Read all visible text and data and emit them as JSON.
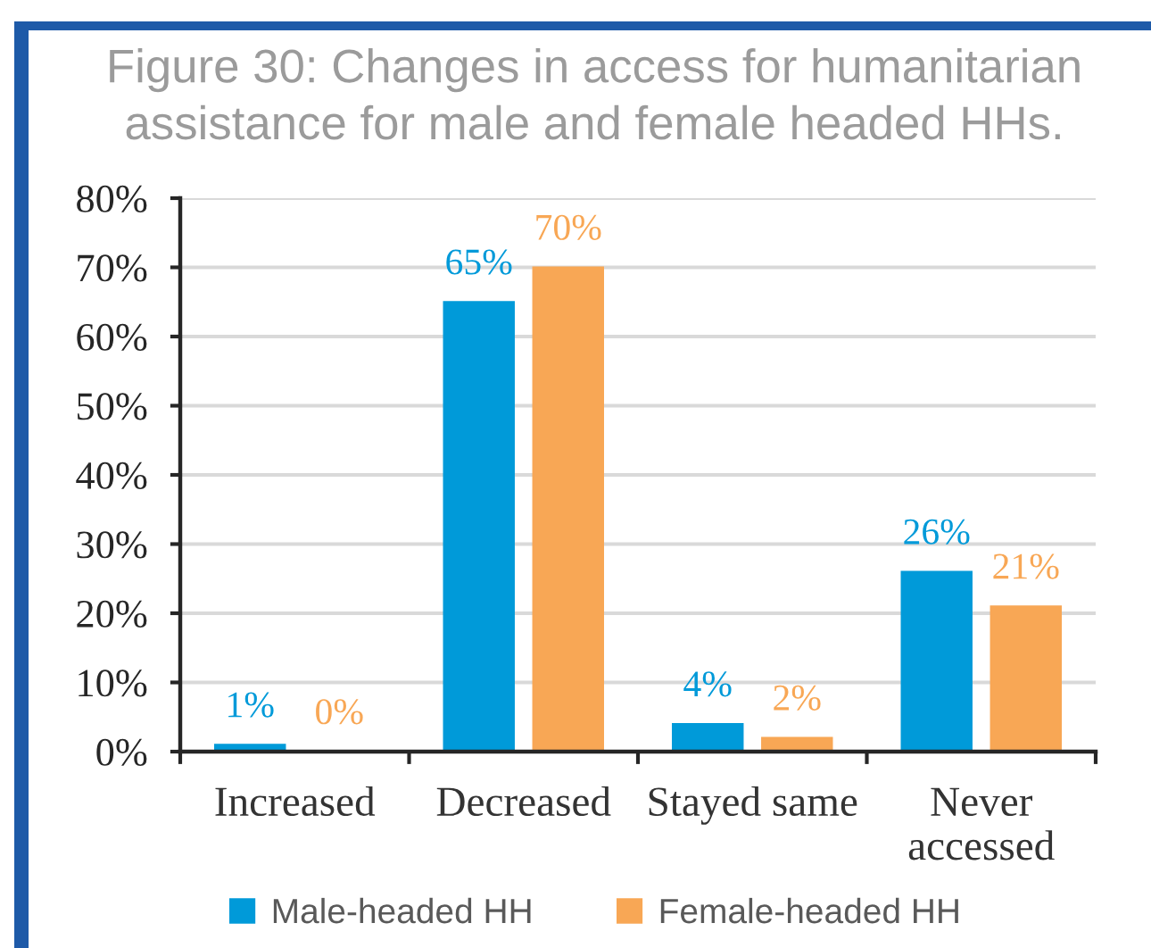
{
  "chart_data": {
    "type": "bar",
    "title": "Figure 30: Changes in access for humanitarian\nassistance for male and female headed HHs.",
    "categories": [
      "Increased",
      "Decreased",
      "Stayed same",
      "Never\naccessed"
    ],
    "series": [
      {
        "name": "Male-headed HH",
        "color": "#009ad9",
        "values": [
          1,
          65,
          4,
          26
        ],
        "value_labels": [
          "1%",
          "65%",
          "4%",
          "26%"
        ]
      },
      {
        "name": "Female-headed HH",
        "color": "#f8a755",
        "values": [
          0,
          70,
          2,
          21
        ],
        "value_labels": [
          "0%",
          "70%",
          "2%",
          "21%"
        ]
      }
    ],
    "ylim": [
      0,
      80
    ],
    "yticks": [
      {
        "value": 0,
        "label": "0%"
      },
      {
        "value": 10,
        "label": "10%"
      },
      {
        "value": 20,
        "label": "20%"
      },
      {
        "value": 30,
        "label": "30%"
      },
      {
        "value": 40,
        "label": "40%"
      },
      {
        "value": 50,
        "label": "50%"
      },
      {
        "value": 60,
        "label": "60%"
      },
      {
        "value": 70,
        "label": "70%"
      },
      {
        "value": 80,
        "label": "80%"
      }
    ],
    "grid": "y",
    "legend": "bottom"
  }
}
